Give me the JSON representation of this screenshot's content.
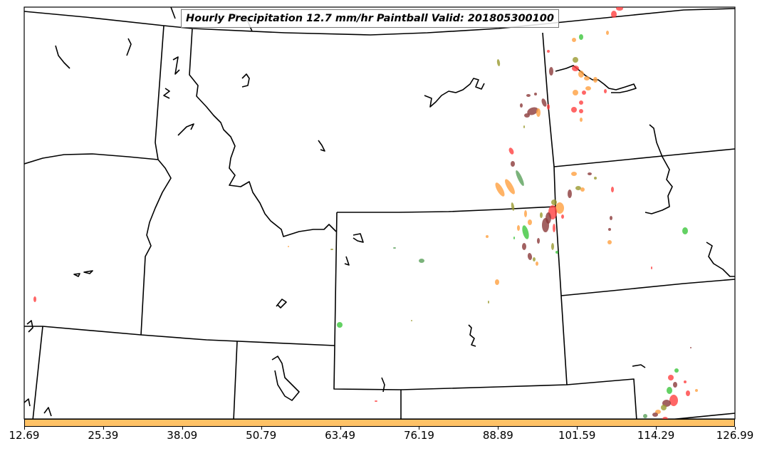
{
  "title": "Hourly Precipitation 12.7 mm/hr Paintball Valid: 201805300100",
  "colorbar": {
    "color": "#ffc266",
    "tick_labels": [
      "12.69",
      "25.39",
      "38.09",
      "50.79",
      "63.49",
      "76.19",
      "88.89",
      "101.59",
      "114.29",
      "126.99"
    ]
  },
  "colors": {
    "dark_red": "#8b3a3a",
    "red": "#ff4040",
    "orange": "#ffa040",
    "olive": "#9a9a30",
    "green": "#3cc63c",
    "seagreen": "#5aa05a",
    "brown": "#a0522d"
  }
}
